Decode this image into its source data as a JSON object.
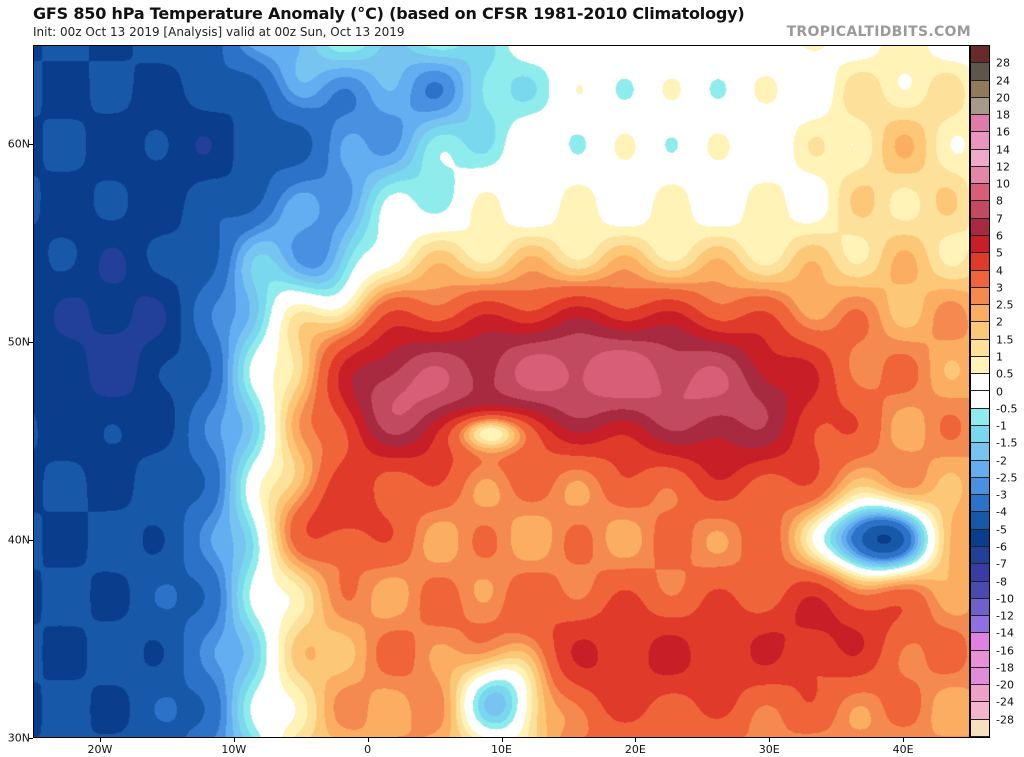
{
  "header": {
    "title": "GFS 850 hPa Temperature Anomaly (°C) (based on CFSR 1981-2010 Climatology)",
    "subtitle": "Init: 00z Oct 13 2019   [Analysis]   valid at 00z Sun, Oct 13 2019",
    "brand": "TROPICALTIDBITS.COM"
  },
  "map": {
    "lon_range": [
      -25,
      45
    ],
    "lat_range": [
      30,
      65
    ],
    "lat_labels": [
      {
        "value": 60,
        "label": "60N"
      },
      {
        "value": 50,
        "label": "50N"
      },
      {
        "value": 40,
        "label": "40N"
      },
      {
        "value": 30,
        "label": "30N"
      }
    ],
    "lon_labels": [
      {
        "value": -20,
        "label": "20W"
      },
      {
        "value": -10,
        "label": "10W"
      },
      {
        "value": 0,
        "label": "0"
      },
      {
        "value": 10,
        "label": "10E"
      },
      {
        "value": 20,
        "label": "20E"
      },
      {
        "value": 30,
        "label": "30E"
      },
      {
        "value": 40,
        "label": "40E"
      }
    ]
  },
  "colorbar": {
    "labels": [
      "28",
      "24",
      "20",
      "18",
      "16",
      "14",
      "12",
      "10",
      "8",
      "7",
      "6",
      "5",
      "4",
      "3",
      "2.5",
      "2",
      "1.5",
      "1",
      "0.5",
      "0",
      "-0.5",
      "-1",
      "-1.5",
      "-2",
      "-2.5",
      "-3",
      "-4",
      "-5",
      "-6",
      "-7",
      "-8",
      "-10",
      "-12",
      "-14",
      "-16",
      "-18",
      "-20",
      "-24",
      "-28"
    ],
    "thresholds": [
      28,
      24,
      20,
      18,
      16,
      14,
      12,
      10,
      8,
      7,
      6,
      5,
      4,
      3,
      2.5,
      2,
      1.5,
      1,
      0.5,
      0,
      -0.5,
      -1,
      -1.5,
      -2,
      -2.5,
      -3,
      -4,
      -5,
      -6,
      -7,
      -8,
      -10,
      -12,
      -14,
      -16,
      -18,
      -20,
      -24,
      -28
    ],
    "colors": [
      "#6b2a2a",
      "#5e554c",
      "#8f7a5c",
      "#a89a88",
      "#e07aa8",
      "#ea95c0",
      "#eeaacb",
      "#e586a8",
      "#d85e78",
      "#c24a60",
      "#a82a40",
      "#c81e28",
      "#e03a2a",
      "#f0643a",
      "#f58a50",
      "#fbae62",
      "#fcc878",
      "#fde09a",
      "#fff3b8",
      "#ffffff",
      "#ffffff",
      "#8eecec",
      "#7ad8ee",
      "#78c4f0",
      "#62aef0",
      "#4a90e0",
      "#2c72c8",
      "#1858a8",
      "#0a3e8c",
      "#22409a",
      "#3a3ca6",
      "#4a4ab0",
      "#7060cc",
      "#9070e0",
      "#e080e0",
      "#e890d8",
      "#e08cd8",
      "#f0a0c8",
      "#f4b4cc",
      "#f5e0c0"
    ]
  }
}
